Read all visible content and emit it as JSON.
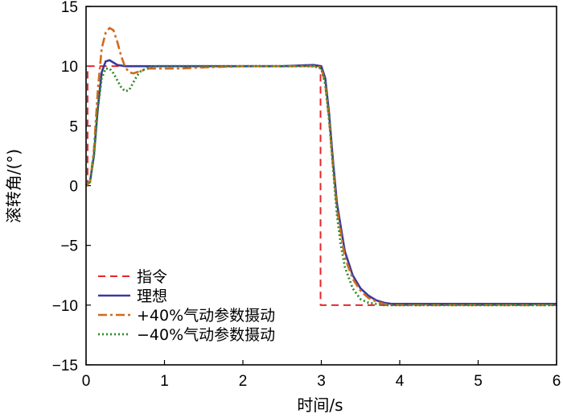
{
  "chart_data": {
    "type": "line",
    "xlabel": "时间/s",
    "ylabel": "滚转角/(°)",
    "xlim": [
      0,
      6
    ],
    "ylim": [
      -15,
      15
    ],
    "xticks": [
      0,
      1,
      2,
      3,
      4,
      5,
      6
    ],
    "yticks": [
      -15,
      -10,
      -5,
      0,
      5,
      10,
      15
    ],
    "xtick_labels": [
      "0",
      "1",
      "2",
      "3",
      "4",
      "5",
      "6"
    ],
    "ytick_labels": [
      "−15",
      "−10",
      "−5",
      "0",
      "5",
      "10",
      "15"
    ],
    "grid": false,
    "legend_position": "bottom-left",
    "series": [
      {
        "name": "指令",
        "color": "#e8262a",
        "dash": "dashed",
        "x": [
          0.0,
          0.02,
          0.02,
          2.99,
          2.99,
          6.0
        ],
        "y": [
          0,
          0,
          10,
          10,
          -10,
          -10
        ]
      },
      {
        "name": "理想",
        "color": "#3a3a9a",
        "dash": "solid",
        "x": [
          0.0,
          0.05,
          0.1,
          0.15,
          0.2,
          0.25,
          0.3,
          0.35,
          0.4,
          0.5,
          0.6,
          0.8,
          1.0,
          1.5,
          2.0,
          2.5,
          2.9,
          3.0,
          3.05,
          3.1,
          3.15,
          3.2,
          3.25,
          3.3,
          3.4,
          3.5,
          3.6,
          3.7,
          3.8,
          3.9,
          4.0,
          4.5,
          5.0,
          6.0
        ],
        "y": [
          0,
          0.3,
          2.5,
          6.5,
          9.5,
          10.4,
          10.5,
          10.3,
          10.1,
          10.0,
          10.0,
          10.0,
          10.0,
          10.0,
          10.0,
          10.0,
          10.1,
          10.0,
          9.0,
          6.0,
          2.0,
          -1.5,
          -3.5,
          -5.5,
          -7.5,
          -8.6,
          -9.2,
          -9.6,
          -9.8,
          -9.9,
          -9.9,
          -9.9,
          -9.9,
          -9.9
        ]
      },
      {
        "name": "+40%气动参数摄动",
        "color": "#d2691e",
        "dash": "dashdot",
        "x": [
          0.0,
          0.05,
          0.1,
          0.15,
          0.2,
          0.25,
          0.3,
          0.35,
          0.4,
          0.45,
          0.5,
          0.55,
          0.6,
          0.7,
          0.8,
          1.0,
          1.2,
          1.5,
          2.0,
          2.5,
          2.9,
          3.0,
          3.05,
          3.1,
          3.15,
          3.2,
          3.25,
          3.3,
          3.4,
          3.5,
          3.6,
          3.7,
          3.8,
          3.9,
          4.0,
          5.0,
          6.0
        ],
        "y": [
          0,
          0.3,
          3.0,
          8.0,
          11.5,
          12.8,
          13.2,
          13.0,
          12.0,
          10.8,
          9.9,
          9.5,
          9.4,
          9.6,
          9.8,
          9.8,
          9.8,
          9.9,
          10.0,
          10.0,
          10.0,
          9.9,
          8.5,
          5.5,
          1.5,
          -2.0,
          -4.0,
          -6.0,
          -7.8,
          -8.8,
          -9.4,
          -9.7,
          -9.9,
          -10.0,
          -10.0,
          -10.0,
          -10.0
        ]
      },
      {
        "name": "−40%气动参数摄动",
        "color": "#2e8b2e",
        "dash": "dotted",
        "x": [
          0.0,
          0.05,
          0.1,
          0.15,
          0.2,
          0.25,
          0.3,
          0.35,
          0.4,
          0.45,
          0.5,
          0.55,
          0.6,
          0.65,
          0.7,
          0.8,
          0.9,
          1.0,
          1.5,
          2.0,
          2.5,
          2.9,
          3.0,
          3.05,
          3.1,
          3.15,
          3.2,
          3.25,
          3.3,
          3.4,
          3.5,
          3.6,
          3.7,
          3.8,
          4.0,
          5.0,
          6.0
        ],
        "y": [
          0,
          0.3,
          2.5,
          6.5,
          9.0,
          9.8,
          9.8,
          9.4,
          8.8,
          8.2,
          7.9,
          8.0,
          8.6,
          9.2,
          9.6,
          9.9,
          10.0,
          10.0,
          10.0,
          10.0,
          10.0,
          10.0,
          9.8,
          8.5,
          5.5,
          1.5,
          -2.5,
          -5.0,
          -6.8,
          -8.6,
          -9.5,
          -9.8,
          -9.9,
          -10.0,
          -10.0,
          -10.0,
          -10.0
        ]
      }
    ]
  }
}
